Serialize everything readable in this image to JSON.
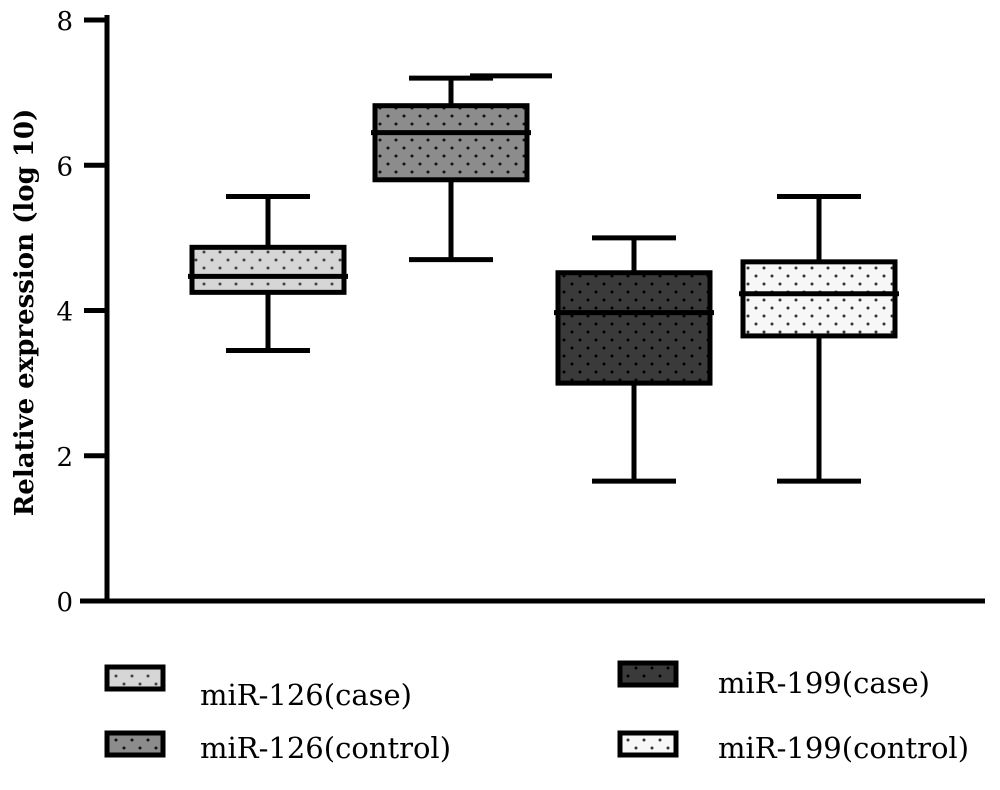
{
  "chart_data": {
    "type": "box",
    "ylabel": "Relative expression (log 10)",
    "xlabel": "",
    "ylim": [
      0,
      8
    ],
    "yticks": [
      "0",
      "2",
      "4",
      "6",
      "8"
    ],
    "grid": false,
    "legend_position": "bottom",
    "series": [
      {
        "name": "miR-126(case)",
        "min": 3.45,
        "q1": 4.25,
        "median": 4.47,
        "q3": 4.87,
        "max": 5.57,
        "fill": "#d6d6d6",
        "dot": "#444444"
      },
      {
        "name": "miR-126(control)",
        "min": 4.7,
        "q1": 5.8,
        "median": 6.45,
        "q3": 6.82,
        "max": 7.2,
        "fill": "#8c8c8c",
        "dot": "#111111"
      },
      {
        "name": "miR-199(case)",
        "min": 1.65,
        "q1": 3.0,
        "median": 3.97,
        "q3": 4.52,
        "max": 5.0,
        "fill": "#3a3a3a",
        "dot": "#000000"
      },
      {
        "name": "miR-199(control)",
        "min": 1.65,
        "q1": 3.65,
        "median": 4.23,
        "q3": 4.67,
        "max": 5.57,
        "fill": "#f7f7f7",
        "dot": "#333333"
      }
    ],
    "annotations": [
      {
        "type": "line",
        "y": 7.23
      }
    ]
  }
}
